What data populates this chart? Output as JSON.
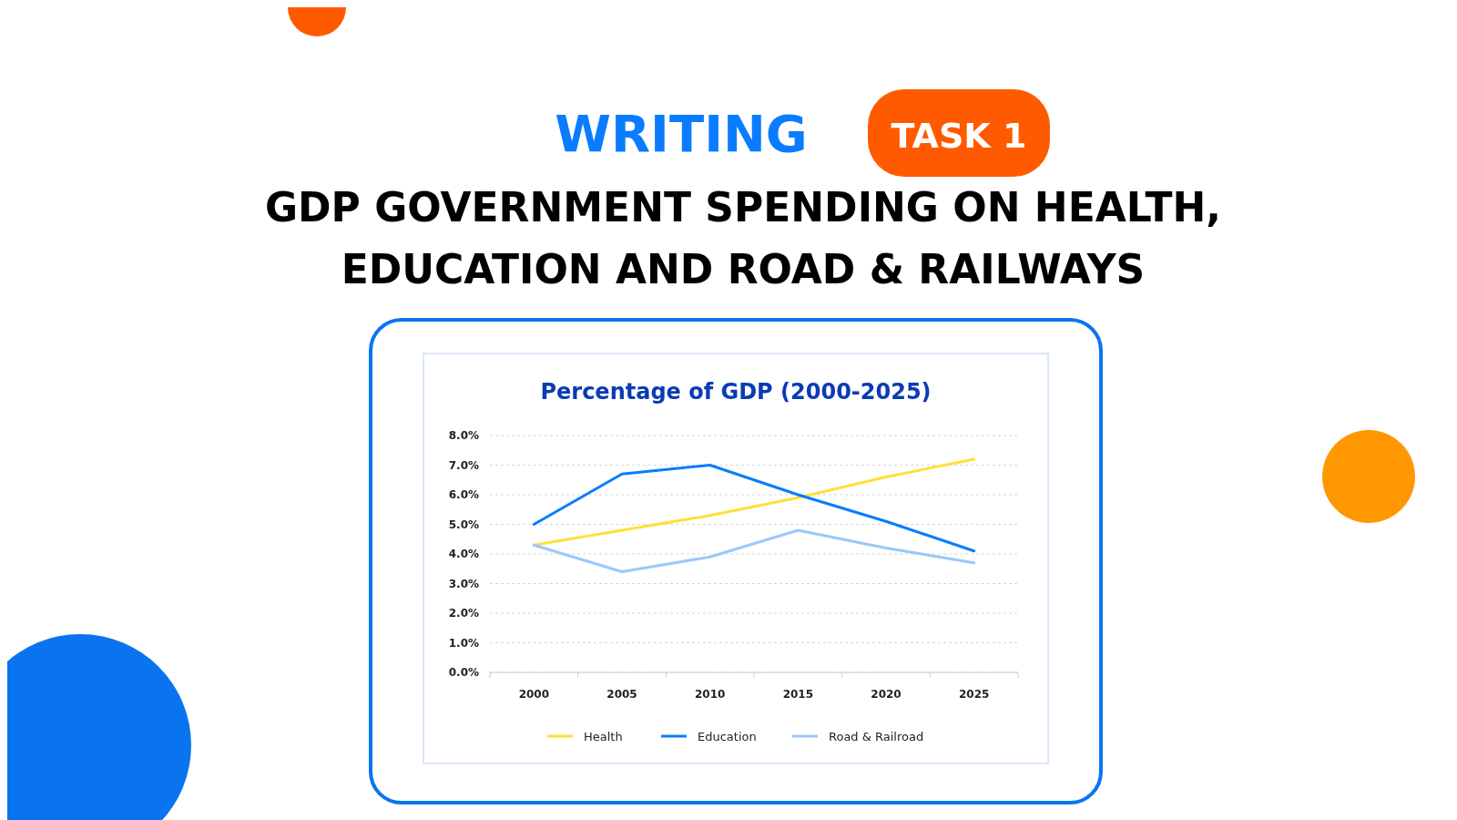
{
  "chart_data": {
    "type": "line",
    "title": "Percentage of GDP (2000-2025)",
    "subtitle": "GDP GOVERNMENT SPENDING ON HEALTH, EDUCATION AND ROAD & RAILWAYS",
    "annotations": [
      "WRITING",
      "TASK 1"
    ],
    "categories": [
      "2000",
      "2005",
      "2010",
      "2015",
      "2020",
      "2025"
    ],
    "series": [
      {
        "name": "Health",
        "color": "#ffe03a",
        "values": [
          4.3,
          4.8,
          5.3,
          5.9,
          6.6,
          7.2
        ]
      },
      {
        "name": "Education",
        "color": "#0a7cff",
        "values": [
          5.0,
          6.7,
          7.0,
          6.0,
          5.1,
          4.1
        ]
      },
      {
        "name": "Road & Railroad",
        "color": "#99c8fb",
        "values": [
          4.3,
          3.4,
          3.9,
          4.8,
          4.2,
          3.7
        ]
      }
    ],
    "ylim": [
      0,
      8
    ],
    "yticks": [
      {
        "value": 0,
        "label": "0.0%"
      },
      {
        "value": 1,
        "label": "1.0%"
      },
      {
        "value": 2,
        "label": "2.0%"
      },
      {
        "value": 3,
        "label": "3.0%"
      },
      {
        "value": 4,
        "label": "4.0%"
      },
      {
        "value": 5,
        "label": "5.0%"
      },
      {
        "value": 6,
        "label": "6.0%"
      },
      {
        "value": 7,
        "label": "7.0%"
      },
      {
        "value": 8,
        "label": "8.0%"
      }
    ],
    "grid": "y",
    "legend": "bottom",
    "marker": "none",
    "line_style": "solid"
  }
}
